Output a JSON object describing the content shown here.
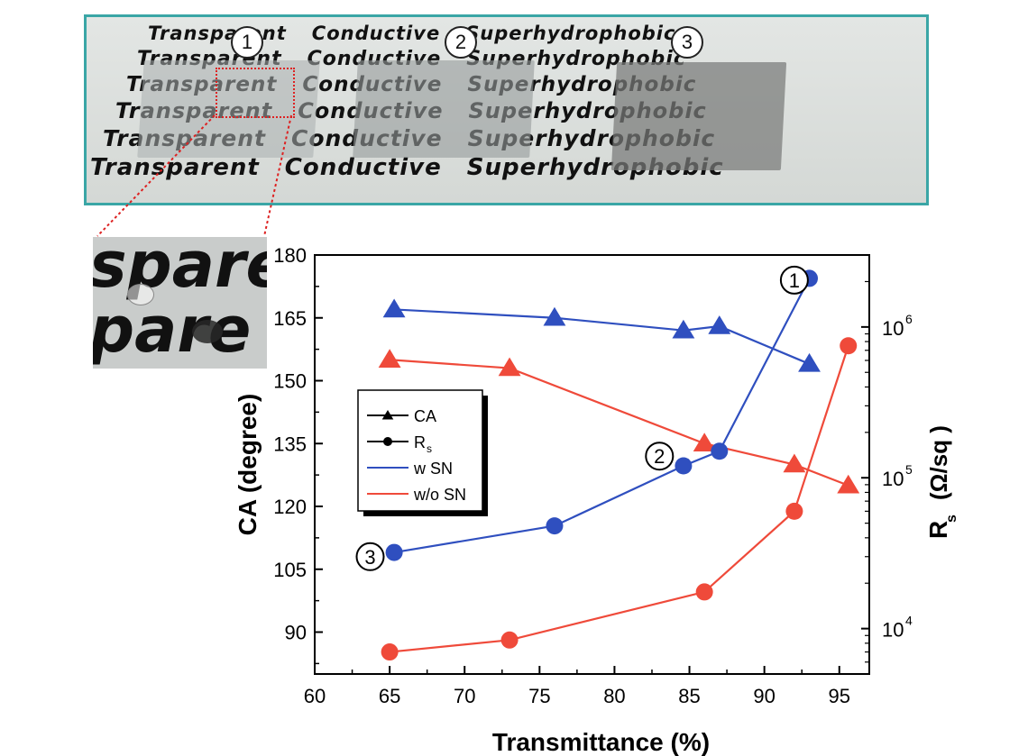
{
  "photo": {
    "printed_lines": [
      {
        "transparent": "Transparent",
        "conductive": "Conductive",
        "superhydrophobic": "Superhydrophobic"
      },
      {
        "transparent": "Transparent",
        "conductive": "Conductive",
        "superhydrophobic": "Superhydrophobic"
      },
      {
        "transparent": "Transparent",
        "conductive": "Conductive",
        "superhydrophobic": "Superhydrophobic"
      },
      {
        "transparent": "Transparent",
        "conductive": "Conductive",
        "superhydrophobic": "Superhydrophobic"
      },
      {
        "transparent": "Transparent",
        "conductive": "Conductive",
        "superhydrophobic": "Superhydrophobic"
      },
      {
        "transparent": "Transparent",
        "conductive": "Conductive",
        "superhydrophobic": "Superhydrophobic"
      }
    ],
    "sample_markers": [
      "1",
      "2",
      "3"
    ],
    "inset_words": [
      "spare",
      "pare"
    ]
  },
  "chart_data": {
    "type": "line",
    "xlabel": "Transmittance (%)",
    "ylabel_left": "CA (degree)",
    "ylabel_right_main": "R",
    "ylabel_right_sub": "s",
    "ylabel_right_unit": "(Ω/sq )",
    "xlim": [
      60,
      97
    ],
    "ylim_left": [
      80,
      180
    ],
    "ylim_right_log": [
      5000,
      3000000
    ],
    "x_ticks": [
      60,
      65,
      70,
      75,
      80,
      85,
      90,
      95
    ],
    "y_left_ticks": [
      90,
      105,
      120,
      135,
      150,
      165,
      180
    ],
    "y_right_ticks": [
      {
        "value": 10000,
        "base": "10",
        "exp": "4"
      },
      {
        "value": 100000,
        "base": "10",
        "exp": "5"
      },
      {
        "value": 1000000,
        "base": "10",
        "exp": "6"
      }
    ],
    "grid": false,
    "legend": {
      "position": "center-left",
      "entries": [
        {
          "label": "CA",
          "marker": "triangle",
          "color": "#000000"
        },
        {
          "label": "R",
          "sub": "s",
          "marker": "circle",
          "color": "#000000"
        },
        {
          "label": "w SN",
          "color": "#2f4fbf"
        },
        {
          "label": "w/o SN",
          "color": "#ef4a3a"
        }
      ]
    },
    "series": [
      {
        "name": "w SN",
        "quantity": "CA",
        "axis": "left",
        "marker": "triangle",
        "color": "#2f4fbf",
        "x": [
          65.3,
          76,
          84.6,
          87,
          93
        ],
        "y": [
          167,
          165,
          162,
          163,
          154
        ]
      },
      {
        "name": "w/o SN",
        "quantity": "CA",
        "axis": "left",
        "marker": "triangle",
        "color": "#ef4a3a",
        "x": [
          65,
          73,
          86,
          92,
          95.6
        ],
        "y": [
          155,
          153,
          135,
          130,
          125
        ]
      },
      {
        "name": "w SN",
        "quantity": "R",
        "sub": "s",
        "axis": "right",
        "marker": "circle",
        "color": "#2f4fbf",
        "x": [
          65.3,
          76,
          84.6,
          87,
          93
        ],
        "y": [
          32000,
          48000,
          120000,
          150000,
          2100000
        ]
      },
      {
        "name": "w/o SN",
        "quantity": "R",
        "sub": "s",
        "axis": "right",
        "marker": "circle",
        "color": "#ef4a3a",
        "x": [
          65,
          73,
          86,
          92,
          95.6
        ],
        "y": [
          7000,
          8400,
          17500,
          60000,
          750000
        ]
      }
    ],
    "annotations": [
      {
        "label": "1",
        "x": 92,
        "y_left": 174
      },
      {
        "label": "2",
        "x": 83,
        "y_left": 132
      },
      {
        "label": "3",
        "x": 63.7,
        "y_left": 108
      }
    ]
  }
}
